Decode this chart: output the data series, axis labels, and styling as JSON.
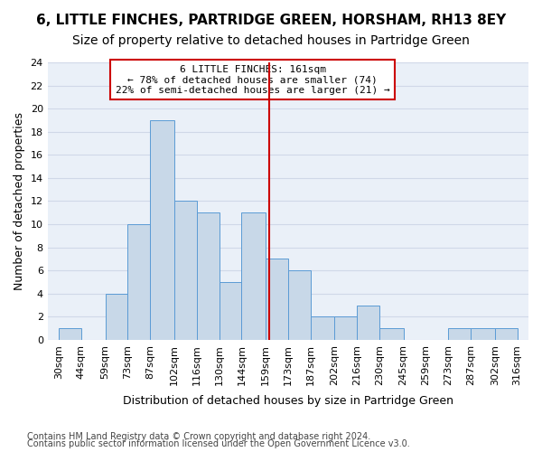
{
  "title": "6, LITTLE FINCHES, PARTRIDGE GREEN, HORSHAM, RH13 8EY",
  "subtitle": "Size of property relative to detached houses in Partridge Green",
  "xlabel": "Distribution of detached houses by size in Partridge Green",
  "ylabel": "Number of detached properties",
  "bar_values": [
    1,
    0,
    4,
    10,
    19,
    12,
    11,
    5,
    11,
    7,
    6,
    2,
    2,
    3,
    1,
    0,
    0,
    1,
    1,
    1
  ],
  "bin_edges": [
    30,
    44,
    59,
    73,
    87,
    102,
    116,
    130,
    144,
    159,
    173,
    187,
    202,
    216,
    230,
    245,
    259,
    273,
    287,
    302,
    316
  ],
  "bin_labels": [
    "30sqm",
    "44sqm",
    "59sqm",
    "73sqm",
    "87sqm",
    "102sqm",
    "116sqm",
    "130sqm",
    "144sqm",
    "159sqm",
    "173sqm",
    "187sqm",
    "202sqm",
    "216sqm",
    "230sqm",
    "245sqm",
    "259sqm",
    "273sqm",
    "287sqm",
    "302sqm",
    "316sqm"
  ],
  "bar_color": "#c8d8e8",
  "bar_edge_color": "#5b9bd5",
  "grid_color": "#d0d8e8",
  "property_line_x": 161,
  "annotation_text": "6 LITTLE FINCHES: 161sqm\n← 78% of detached houses are smaller (74)\n22% of semi-detached houses are larger (21) →",
  "annotation_box_color": "#ffffff",
  "annotation_border_color": "#cc0000",
  "red_line_color": "#cc0000",
  "ylim": [
    0,
    24
  ],
  "yticks": [
    0,
    2,
    4,
    6,
    8,
    10,
    12,
    14,
    16,
    18,
    20,
    22,
    24
  ],
  "footnote1": "Contains HM Land Registry data © Crown copyright and database right 2024.",
  "footnote2": "Contains public sector information licensed under the Open Government Licence v3.0.",
  "title_fontsize": 11,
  "subtitle_fontsize": 10,
  "axis_label_fontsize": 9,
  "tick_fontsize": 8,
  "annotation_fontsize": 8,
  "footnote_fontsize": 7,
  "bg_color": "#eaf0f8"
}
